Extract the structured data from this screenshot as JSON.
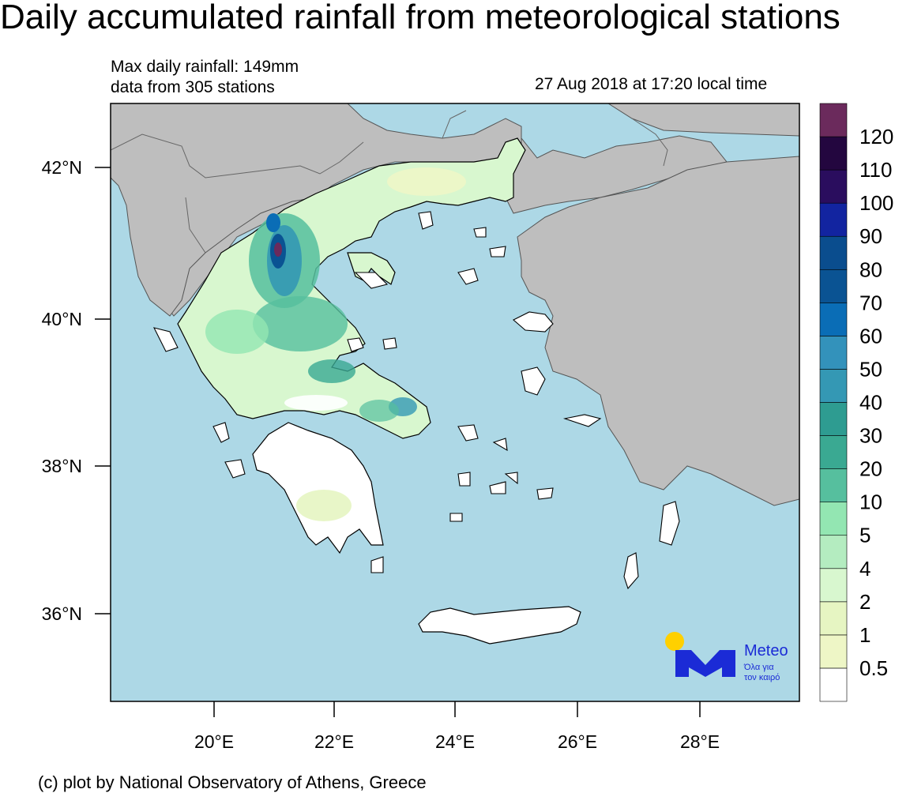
{
  "title": "Daily accumulated rainfall from meteorological stations",
  "stats": {
    "max_line": "Max daily rainfall: 149mm",
    "stations_line": "data from 305 stations"
  },
  "timestamp": "27 Aug 2018 at 17:20 local time",
  "map": {
    "lat_ticks": [
      "42°N",
      "40°N",
      "38°N",
      "36°N"
    ],
    "lon_ticks": [
      "20°E",
      "22°E",
      "24°E",
      "26°E",
      "28°E"
    ],
    "colors": {
      "sea": "#add8e6",
      "other_land": "#bebebe",
      "no_rain_land": "#ffffff"
    }
  },
  "legend": {
    "levels": [
      "0.5",
      "1",
      "2",
      "4",
      "5",
      "10",
      "20",
      "30",
      "40",
      "50",
      "60",
      "70",
      "80",
      "90",
      "100",
      "110",
      "120"
    ],
    "colors": [
      "#ffffff",
      "#eef6c6",
      "#e6f5c2",
      "#d8f7cf",
      "#b4ecc0",
      "#93e6b2",
      "#56bf9e",
      "#3aa992",
      "#2e9c91",
      "#3498b4",
      "#3392bb",
      "#0a6db6",
      "#0a5393",
      "#0a4d8e",
      "#1224a0",
      "#2a0d5e",
      "#23063f",
      "#6b2a5c"
    ]
  },
  "logo": {
    "brand": "Meteo",
    "tagline_1": "Όλα για",
    "tagline_2": "τον καιρό"
  },
  "credit": "(c) plot by National Observatory of Athens, Greece"
}
